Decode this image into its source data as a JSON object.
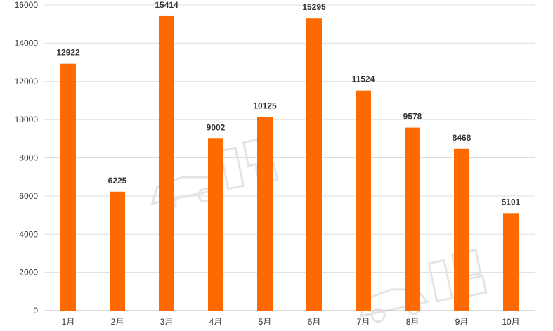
{
  "chart_data": {
    "type": "bar",
    "categories": [
      "1月",
      "2月",
      "3月",
      "4月",
      "5月",
      "6月",
      "7月",
      "8月",
      "9月",
      "10月"
    ],
    "values": [
      12922,
      6225,
      15414,
      9002,
      10125,
      15295,
      11524,
      9578,
      8468,
      5101
    ],
    "ylim": [
      0,
      16000
    ],
    "yticks": [
      0,
      2000,
      4000,
      6000,
      8000,
      10000,
      12000,
      14000,
      16000
    ],
    "grid": true,
    "legend": "none",
    "title": "",
    "xlabel": "",
    "ylabel": "",
    "bar_color": "#ff6a00",
    "grid_color": "#dddddd",
    "text_color": "#333333"
  }
}
